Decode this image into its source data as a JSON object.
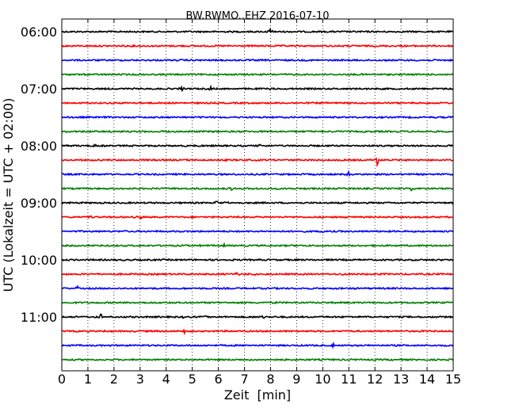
{
  "chart_data": {
    "type": "line",
    "title": "BW.RWMO..EHZ 2016-07-10",
    "xlabel": "Zeit  [min]",
    "ylabel": "UTC (Lokalzeit = UTC + 02:00)",
    "xlim": [
      0,
      15
    ],
    "x_ticks": [
      "0",
      "1",
      "2",
      "3",
      "4",
      "5",
      "6",
      "7",
      "8",
      "9",
      "10",
      "11",
      "12",
      "13",
      "14",
      "15"
    ],
    "grid": "vertical dotted at each minute",
    "y_ticks": [
      {
        "label": "06:00",
        "row": 0
      },
      {
        "label": "07:00",
        "row": 4
      },
      {
        "label": "08:00",
        "row": 8
      },
      {
        "label": "09:00",
        "row": 12
      },
      {
        "label": "10:00",
        "row": 16
      },
      {
        "label": "11:00",
        "row": 20
      }
    ],
    "row_colors": [
      "#000000",
      "#ff0000",
      "#0000ff",
      "#007f00"
    ],
    "rows": [
      {
        "color": "#000000",
        "events": [
          {
            "t": 8.0,
            "a": 0.5
          }
        ]
      },
      {
        "color": "#ff0000",
        "events": []
      },
      {
        "color": "#0000ff",
        "events": []
      },
      {
        "color": "#007f00",
        "events": []
      },
      {
        "color": "#000000",
        "events": [
          {
            "t": 4.6,
            "a": 0.3
          },
          {
            "t": 5.7,
            "a": 0.35
          },
          {
            "t": 8.0,
            "a": 0.25
          }
        ]
      },
      {
        "color": "#ff0000",
        "events": []
      },
      {
        "color": "#0000ff",
        "events": []
      },
      {
        "color": "#007f00",
        "events": [
          {
            "t": 3.9,
            "a": 0.35
          }
        ]
      },
      {
        "color": "#000000",
        "events": [
          {
            "t": 1.3,
            "a": 0.2
          },
          {
            "t": 7.6,
            "a": 0.3
          }
        ]
      },
      {
        "color": "#ff0000",
        "events": [
          {
            "t": 12.1,
            "a": 1.0
          }
        ]
      },
      {
        "color": "#0000ff",
        "events": [
          {
            "t": 11.0,
            "a": 0.3
          }
        ]
      },
      {
        "color": "#007f00",
        "events": [
          {
            "t": 2.5,
            "a": 0.2
          },
          {
            "t": 6.5,
            "a": 0.25
          },
          {
            "t": 7.4,
            "a": 0.3
          },
          {
            "t": 11.2,
            "a": 0.2
          },
          {
            "t": 13.4,
            "a": 0.3
          }
        ]
      },
      {
        "color": "#000000",
        "events": [
          {
            "t": 5.9,
            "a": 0.35
          },
          {
            "t": 6.4,
            "a": 0.2
          }
        ]
      },
      {
        "color": "#ff0000",
        "events": [
          {
            "t": 1.1,
            "a": 0.35
          },
          {
            "t": 3.0,
            "a": 0.3
          },
          {
            "t": 11.0,
            "a": 0.25
          }
        ]
      },
      {
        "color": "#0000ff",
        "events": [
          {
            "t": 4.7,
            "a": 0.25
          },
          {
            "t": 10.0,
            "a": 0.2
          }
        ]
      },
      {
        "color": "#007f00",
        "events": [
          {
            "t": 1.5,
            "a": 0.2
          },
          {
            "t": 5.3,
            "a": 0.2
          },
          {
            "t": 6.2,
            "a": 0.3
          }
        ]
      },
      {
        "color": "#000000",
        "events": []
      },
      {
        "color": "#ff0000",
        "events": [
          {
            "t": 6.7,
            "a": 0.3
          },
          {
            "t": 7.4,
            "a": 0.25
          },
          {
            "t": 9.9,
            "a": 0.2
          },
          {
            "t": 10.8,
            "a": 0.2
          }
        ]
      },
      {
        "color": "#0000ff",
        "events": [
          {
            "t": 0.6,
            "a": 0.3
          },
          {
            "t": 11.0,
            "a": 0.2
          }
        ]
      },
      {
        "color": "#007f00",
        "events": [
          {
            "t": 8.2,
            "a": 0.2
          }
        ]
      },
      {
        "color": "#000000",
        "events": [
          {
            "t": 1.5,
            "a": 0.45
          },
          {
            "t": 4.6,
            "a": 0.25
          },
          {
            "t": 5.5,
            "a": 0.35
          },
          {
            "t": 7.7,
            "a": 0.25
          }
        ]
      },
      {
        "color": "#ff0000",
        "events": [
          {
            "t": 1.6,
            "a": 0.2
          },
          {
            "t": 4.7,
            "a": 0.3
          }
        ]
      },
      {
        "color": "#0000ff",
        "events": [
          {
            "t": 10.4,
            "a": 0.35
          }
        ]
      },
      {
        "color": "#007f00",
        "events": []
      }
    ]
  }
}
